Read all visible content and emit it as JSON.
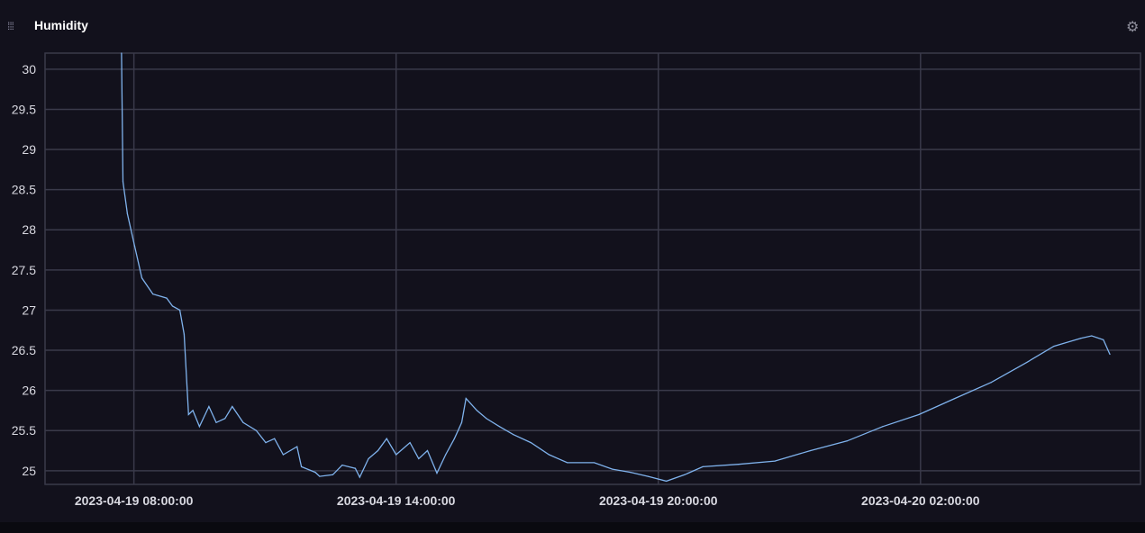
{
  "panel": {
    "title": "Humidity",
    "drag_icon": "drag-handle-icon",
    "settings_icon": "gear-icon"
  },
  "colors": {
    "background": "#12111c",
    "grid": "#3a3a4a",
    "line": "#7fb2ec"
  },
  "chart_data": {
    "type": "line",
    "title": "Humidity",
    "xlabel": "",
    "ylabel": "",
    "grid": true,
    "ylim": [
      24.83,
      30.2
    ],
    "xlim": [
      "2023-04-19 05:58",
      "2023-04-20 07:02"
    ],
    "yticks": [
      "25",
      "25.5",
      "26",
      "26.5",
      "27",
      "27.5",
      "28",
      "28.5",
      "29",
      "29.5",
      "30"
    ],
    "xticks": [
      "2023-04-19 08:00:00",
      "2023-04-19 14:00:00",
      "2023-04-19 20:00:00",
      "2023-04-20 02:00:00"
    ],
    "series": [
      {
        "points": [
          [
            "2023-04-19 07:43",
            30.2
          ],
          [
            "2023-04-19 07:45",
            28.6
          ],
          [
            "2023-04-19 07:51",
            28.2
          ],
          [
            "2023-04-19 08:01",
            27.8
          ],
          [
            "2023-04-19 08:11",
            27.4
          ],
          [
            "2023-04-19 08:26",
            27.2
          ],
          [
            "2023-04-19 08:45",
            27.15
          ],
          [
            "2023-04-19 08:53",
            27.05
          ],
          [
            "2023-04-19 09:03",
            27.0
          ],
          [
            "2023-04-19 09:09",
            26.7
          ],
          [
            "2023-04-19 09:15",
            25.7
          ],
          [
            "2023-04-19 09:21",
            25.75
          ],
          [
            "2023-04-19 09:30",
            25.55
          ],
          [
            "2023-04-19 09:43",
            25.8
          ],
          [
            "2023-04-19 09:53",
            25.6
          ],
          [
            "2023-04-19 10:05",
            25.65
          ],
          [
            "2023-04-19 10:15",
            25.8
          ],
          [
            "2023-04-19 10:30",
            25.6
          ],
          [
            "2023-04-19 10:48",
            25.5
          ],
          [
            "2023-04-19 11:01",
            25.35
          ],
          [
            "2023-04-19 11:13",
            25.4
          ],
          [
            "2023-04-19 11:25",
            25.2
          ],
          [
            "2023-04-19 11:44",
            25.3
          ],
          [
            "2023-04-19 11:50",
            25.05
          ],
          [
            "2023-04-19 12:09",
            24.98
          ],
          [
            "2023-04-19 12:15",
            24.93
          ],
          [
            "2023-04-19 12:33",
            24.95
          ],
          [
            "2023-04-19 12:46",
            25.07
          ],
          [
            "2023-04-19 13:04",
            25.03
          ],
          [
            "2023-04-19 13:10",
            24.92
          ],
          [
            "2023-04-19 13:22",
            25.15
          ],
          [
            "2023-04-19 13:35",
            25.25
          ],
          [
            "2023-04-19 13:47",
            25.4
          ],
          [
            "2023-04-19 14:00",
            25.2
          ],
          [
            "2023-04-19 14:19",
            25.35
          ],
          [
            "2023-04-19 14:31",
            25.15
          ],
          [
            "2023-04-19 14:43",
            25.25
          ],
          [
            "2023-04-19 14:56",
            24.97
          ],
          [
            "2023-04-19 15:08",
            25.2
          ],
          [
            "2023-04-19 15:20",
            25.4
          ],
          [
            "2023-04-19 15:30",
            25.6
          ],
          [
            "2023-04-19 15:36",
            25.9
          ],
          [
            "2023-04-19 15:51",
            25.75
          ],
          [
            "2023-04-19 16:04",
            25.65
          ],
          [
            "2023-04-19 16:22",
            25.55
          ],
          [
            "2023-04-19 16:41",
            25.45
          ],
          [
            "2023-04-19 17:05",
            25.35
          ],
          [
            "2023-04-19 17:30",
            25.2
          ],
          [
            "2023-04-19 17:55",
            25.1
          ],
          [
            "2023-04-19 18:32",
            25.1
          ],
          [
            "2023-04-19 18:57",
            25.02
          ],
          [
            "2023-04-19 19:22",
            24.98
          ],
          [
            "2023-04-19 19:46",
            24.93
          ],
          [
            "2023-04-19 20:11",
            24.87
          ],
          [
            "2023-04-19 20:36",
            24.95
          ],
          [
            "2023-04-19 21:01",
            25.05
          ],
          [
            "2023-04-19 21:50",
            25.08
          ],
          [
            "2023-04-19 22:40",
            25.12
          ],
          [
            "2023-04-19 23:29",
            25.25
          ],
          [
            "2023-04-20 00:19",
            25.37
          ],
          [
            "2023-04-20 01:08",
            25.55
          ],
          [
            "2023-04-20 01:58",
            25.7
          ],
          [
            "2023-04-20 02:47",
            25.9
          ],
          [
            "2023-04-20 03:37",
            26.1
          ],
          [
            "2023-04-20 04:26",
            26.35
          ],
          [
            "2023-04-20 05:03",
            26.55
          ],
          [
            "2023-04-20 05:40",
            26.65
          ],
          [
            "2023-04-20 05:55",
            26.68
          ],
          [
            "2023-04-20 06:11",
            26.63
          ],
          [
            "2023-04-20 06:20",
            26.45
          ]
        ]
      }
    ]
  }
}
